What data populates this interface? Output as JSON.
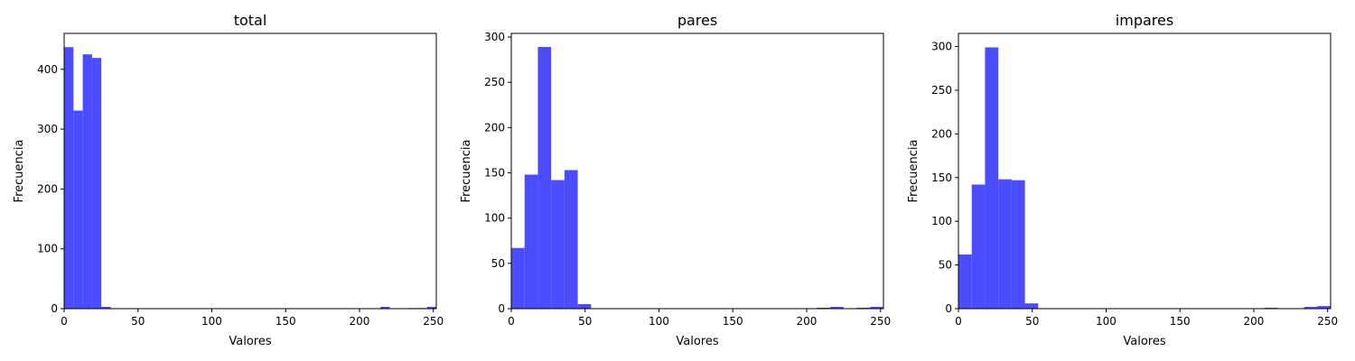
{
  "chart_data": [
    {
      "type": "bar",
      "title": "total",
      "xlabel": "Valores",
      "ylabel": "Frecuencia",
      "xlim": [
        0,
        252
      ],
      "ylim": [
        0,
        460
      ],
      "xticks": [
        0,
        50,
        100,
        150,
        200,
        250
      ],
      "yticks": [
        0,
        100,
        200,
        300,
        400
      ],
      "bar_color": "#4c4cff",
      "bins": [
        {
          "x0": 0,
          "x1": 6.3,
          "value": 437
        },
        {
          "x0": 6.3,
          "x1": 12.6,
          "value": 331
        },
        {
          "x0": 12.6,
          "x1": 18.9,
          "value": 425
        },
        {
          "x0": 18.9,
          "x1": 25.2,
          "value": 419
        },
        {
          "x0": 25.2,
          "x1": 31.5,
          "value": 3
        },
        {
          "x0": 214.2,
          "x1": 220.5,
          "value": 3
        },
        {
          "x0": 233.1,
          "x1": 239.4,
          "value": 1
        },
        {
          "x0": 239.4,
          "x1": 245.7,
          "value": 1
        },
        {
          "x0": 245.7,
          "x1": 252,
          "value": 3
        }
      ]
    },
    {
      "type": "bar",
      "title": "pares",
      "xlabel": "Valores",
      "ylabel": "Frecuencia",
      "xlim": [
        0,
        252
      ],
      "ylim": [
        0,
        304
      ],
      "xticks": [
        0,
        50,
        100,
        150,
        200,
        250
      ],
      "yticks": [
        0,
        50,
        100,
        150,
        200,
        250,
        300
      ],
      "bar_color": "#4c4cff",
      "bins": [
        {
          "x0": 0,
          "x1": 9,
          "value": 67
        },
        {
          "x0": 9,
          "x1": 18,
          "value": 148
        },
        {
          "x0": 18,
          "x1": 27,
          "value": 289
        },
        {
          "x0": 27,
          "x1": 36,
          "value": 142
        },
        {
          "x0": 36,
          "x1": 45,
          "value": 153
        },
        {
          "x0": 45,
          "x1": 54,
          "value": 5
        },
        {
          "x0": 207,
          "x1": 216,
          "value": 1
        },
        {
          "x0": 216,
          "x1": 225,
          "value": 2
        },
        {
          "x0": 234,
          "x1": 243,
          "value": 1
        },
        {
          "x0": 243,
          "x1": 252,
          "value": 2
        }
      ]
    },
    {
      "type": "bar",
      "title": "impares",
      "xlabel": "Valores",
      "ylabel": "Frecuencia",
      "xlim": [
        0,
        252
      ],
      "ylim": [
        0,
        315
      ],
      "xticks": [
        0,
        50,
        100,
        150,
        200,
        250
      ],
      "yticks": [
        0,
        50,
        100,
        150,
        200,
        250,
        300
      ],
      "bar_color": "#4c4cff",
      "bins": [
        {
          "x0": 0,
          "x1": 9,
          "value": 62
        },
        {
          "x0": 9,
          "x1": 18,
          "value": 142
        },
        {
          "x0": 18,
          "x1": 27,
          "value": 299
        },
        {
          "x0": 27,
          "x1": 36,
          "value": 148
        },
        {
          "x0": 36,
          "x1": 45,
          "value": 147
        },
        {
          "x0": 45,
          "x1": 54,
          "value": 6
        },
        {
          "x0": 207,
          "x1": 216,
          "value": 1
        },
        {
          "x0": 234,
          "x1": 243,
          "value": 2
        },
        {
          "x0": 243,
          "x1": 252,
          "value": 3
        }
      ]
    }
  ]
}
